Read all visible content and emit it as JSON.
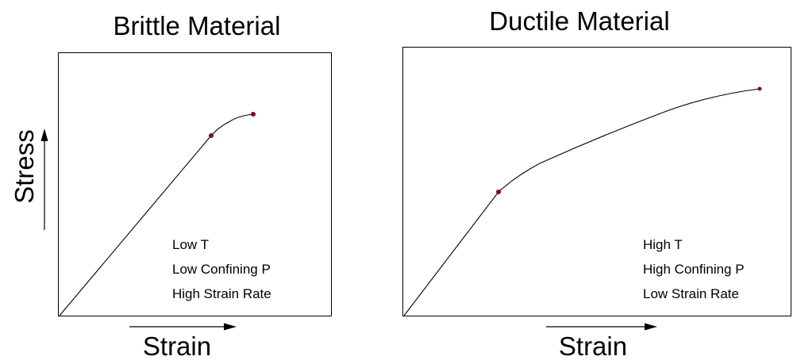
{
  "colors": {
    "line": "#000000",
    "point": "#7a1010",
    "background": "#ffffff"
  },
  "y_axis_label": "Stress",
  "panels": [
    {
      "title": "Brittle Material",
      "x_axis_label": "Strain",
      "conditions": [
        "Low T",
        "Low Confining P",
        "High Strain Rate"
      ]
    },
    {
      "title": "Ductile Material",
      "x_axis_label": "Strain",
      "conditions": [
        "High T",
        "High Confining P",
        "Low Strain Rate"
      ]
    }
  ]
}
